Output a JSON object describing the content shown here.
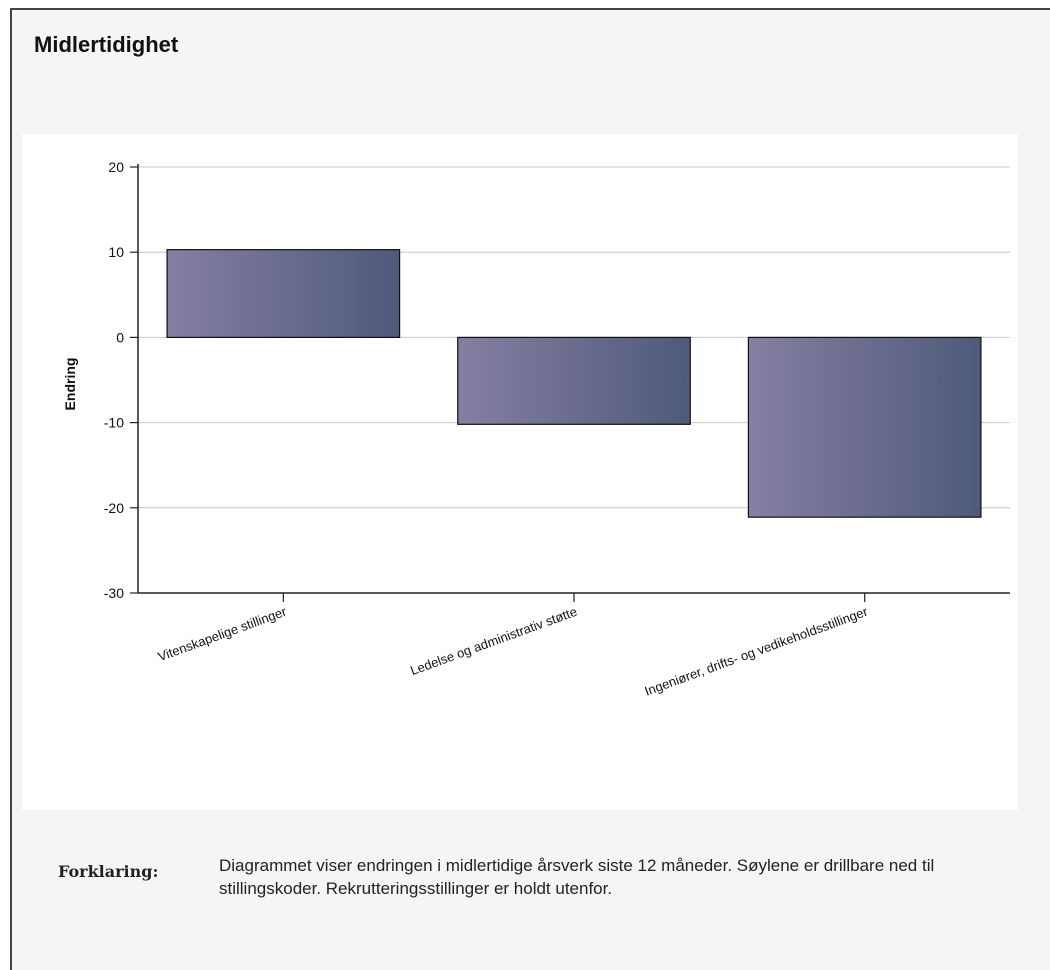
{
  "panel": {
    "title": "Midlertidighet"
  },
  "colors": {
    "bar_light": "#857fa3",
    "bar_dark": "#4f5a79",
    "bar_border": "#111111",
    "gridline": "#c8c8c8",
    "axis": "#222222"
  },
  "chart_data": {
    "type": "bar",
    "categories": [
      "Vitenskapelige stillinger",
      "Ledelse og administrativ støtte",
      "Ingeniører, drifts- og vedikeholdsstillinger"
    ],
    "values": [
      10.3,
      -10.2,
      -21.1
    ],
    "title": "",
    "xlabel": "",
    "ylabel": "Endring",
    "ylim": [
      -30,
      20
    ],
    "yticks": [
      20,
      10,
      0,
      -10,
      -20,
      -30
    ],
    "grid": true,
    "legend": "none"
  },
  "explanation": {
    "label": "Forklaring:",
    "text": "Diagrammet viser endringen i midlertidige årsverk siste 12 måneder. Søylene er drillbare ned til stillingskoder. Rekrutteringsstillinger er holdt utenfor."
  }
}
